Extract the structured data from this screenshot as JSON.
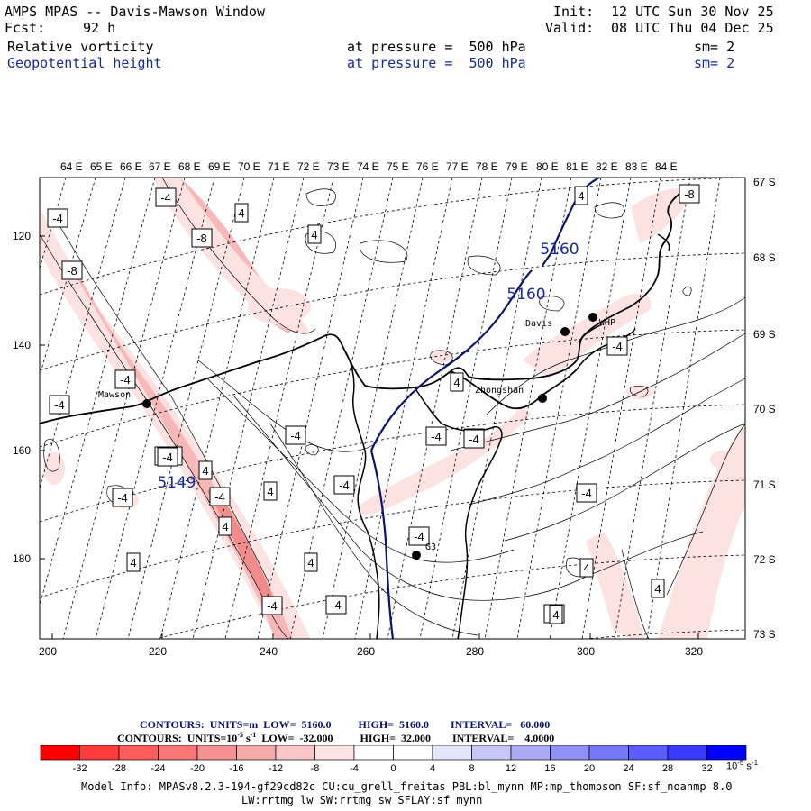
{
  "header": {
    "title": "AMPS MPAS -- Davis-Mawson Window",
    "fcst_label": "Fcst:",
    "fcst_value": "92 h",
    "init_label": "Init:",
    "init_value": "12 UTC Sun 30 Nov 25",
    "valid_label": "Valid:",
    "valid_value": "08 UTC Thu 04 Dec 25",
    "field1": "Relative vorticity",
    "field1_level": "at pressure =  500 hPa",
    "field1_sm": "sm= 2",
    "field2": "Geopotential height",
    "field2_level": "at pressure =  500 hPa",
    "field2_sm": "sm= 2"
  },
  "map": {
    "x_ticks": [
      "200",
      "220",
      "240",
      "260",
      "280",
      "300",
      "320"
    ],
    "y_ticks": [
      "120",
      "140",
      "160",
      "180"
    ],
    "lon_labels": [
      "64 E",
      "65 E",
      "66 E",
      "67 E",
      "68 E",
      "69 E",
      "70 E",
      "71 E",
      "72 E",
      "73 E",
      "74 E",
      "75 E",
      "76 E",
      "77 E",
      "78 E",
      "79 E",
      "80 E",
      "81 E",
      "82 E",
      "83 E",
      "84 E"
    ],
    "lat_labels": [
      "67 S",
      "68 S",
      "69 S",
      "70 S",
      "71 S",
      "72 S",
      "73 S"
    ],
    "stations": [
      {
        "name": "Mawson"
      },
      {
        "name": "Davis"
      },
      {
        "name": "WHP"
      },
      {
        "name": "Zhongshan"
      },
      {
        "name": "G3"
      }
    ],
    "height_labels": [
      "5160",
      "5160",
      "5149"
    ],
    "vort_labels": [
      "-4",
      "-4",
      "4",
      "4",
      "-8",
      "-8",
      "-4",
      "4",
      "-8",
      "-4",
      "-4",
      "4",
      "-4",
      "-4",
      "-8",
      "-12",
      "4",
      "-4",
      "4",
      "-4",
      "-4",
      "4",
      "-4",
      "4",
      "4",
      "-4",
      "-4",
      "-4",
      "4",
      "-4",
      "4",
      "-4",
      "4",
      "-4"
    ],
    "colors": {
      "height_contour": "#0a1470",
      "vort_contour": "#000000",
      "coast": "#000000",
      "light_pink": "#fde2e2",
      "pink": "#f8b8b8",
      "medium_pink": "#f28c8c"
    }
  },
  "legend": {
    "line1": "CONTOURS:  UNITS=m  LOW=  5160.0          HIGH=  5160.0        INTERVAL=   60.000",
    "line2_prefix": "CONTOURS:  UNITS=10",
    "line2_exp": "-5",
    "line2_suffix": " s",
    "line2_exp2": "-1",
    "line2_rest": "  LOW=  -32.000          HIGH=  32.000        INTERVAL=    4.0000",
    "colorbar_values": [
      "-32",
      "-28",
      "-24",
      "-20",
      "-16",
      "-12",
      "-8",
      "-4",
      "0",
      "4",
      "8",
      "12",
      "16",
      "20",
      "24",
      "28",
      "32"
    ],
    "colorbar_colors": [
      "#ff0000",
      "#ff3a3a",
      "#fc5c5c",
      "#f97777",
      "#f69191",
      "#f5aaaa",
      "#f8c6c6",
      "#fde4e4",
      "#ffffff",
      "#ffffff",
      "#e4e4fd",
      "#c6c6f8",
      "#aaaaf5",
      "#9191f6",
      "#7777f9",
      "#5c5cfc",
      "#3a3aff",
      "#0000ff"
    ],
    "unit_base": "10",
    "unit_exp": "-5",
    "unit_s": " s",
    "unit_exp2": "-1"
  },
  "footer": {
    "line1": "Model Info: MPASv8.2.3-194-gf29cd82c CU:cu_grell_freitas PBL:bl_mynn MP:mp_thompson SF:sf_noahmp 8.0",
    "line2": "LW:rrtmg_lw SW:rrtmg_sw SFLAY:sf_mynn"
  }
}
